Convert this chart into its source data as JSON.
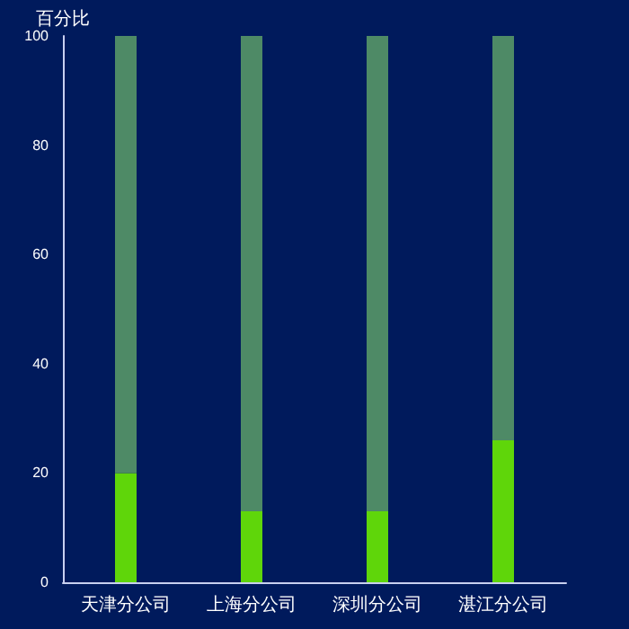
{
  "chart_data": {
    "type": "bar",
    "ylabel": "百分比",
    "categories": [
      "天津分公司",
      "上海分公司",
      "深圳分公司",
      "湛江分公司"
    ],
    "series": [
      {
        "color": "#5fd60a",
        "values": [
          20,
          13,
          13,
          26
        ]
      },
      {
        "color": "#4e8a66",
        "values": [
          80,
          87,
          87,
          74
        ]
      }
    ],
    "stacked": true,
    "ylim": [
      0,
      100
    ],
    "yticks": [
      0,
      20,
      40,
      60,
      80,
      100
    ],
    "grid": false
  }
}
